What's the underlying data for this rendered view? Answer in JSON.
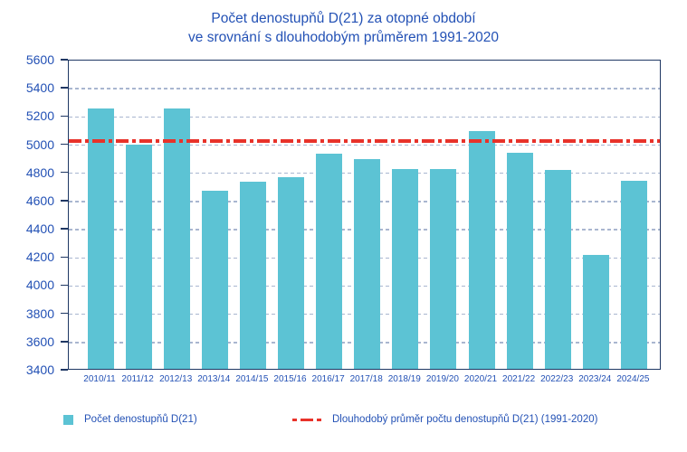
{
  "title": {
    "line1": "Počet denostupňů D(21) za otopné období",
    "line2": "ve srovnání s dlouhodobým průměrem 1991-2020"
  },
  "chart_data": {
    "type": "bar",
    "categories": [
      "2010/11",
      "2011/12",
      "2012/13",
      "2013/14",
      "2014/15",
      "2015/16",
      "2016/17",
      "2017/18",
      "2018/19",
      "2019/20",
      "2020/21",
      "2021/22",
      "2022/23",
      "2023/24",
      "2024/25"
    ],
    "series": [
      {
        "name": "Počet denostupňů D(21)",
        "values": [
          5250,
          4990,
          5250,
          4665,
          4730,
          4760,
          4925,
          4885,
          4820,
          4820,
          5090,
          4930,
          4810,
          4210,
          4735
        ]
      }
    ],
    "average_line": {
      "label": "Dlouhodobý průměr počtu denostupňů D(21) (1991-2020)",
      "value": 5030,
      "style": "dash-dot"
    },
    "title": "Počet denostupňů D(21) za otopné období ve srovnání s dlouhodobým průměrem 1991-2020",
    "xlabel": "",
    "ylabel": "",
    "ylim": [
      3400,
      5600
    ],
    "ytick_step": 200,
    "yticks": [
      "5600",
      "5400",
      "5200",
      "5000",
      "4800",
      "4600",
      "4400",
      "4200",
      "4000",
      "3800",
      "3600",
      "3400"
    ],
    "grid": true,
    "legend_position": "bottom",
    "colors": {
      "bar": "#5cc3d4",
      "average_line": "#e8322a",
      "text": "#2351b5",
      "axis": "#1f3864",
      "gridline": "#a9b6d0"
    }
  },
  "legend": {
    "bar_label": "Počet denostupňů D(21)",
    "line_label": "Dlouhodobý průměr počtu denostupňů D(21) (1991-2020)"
  }
}
